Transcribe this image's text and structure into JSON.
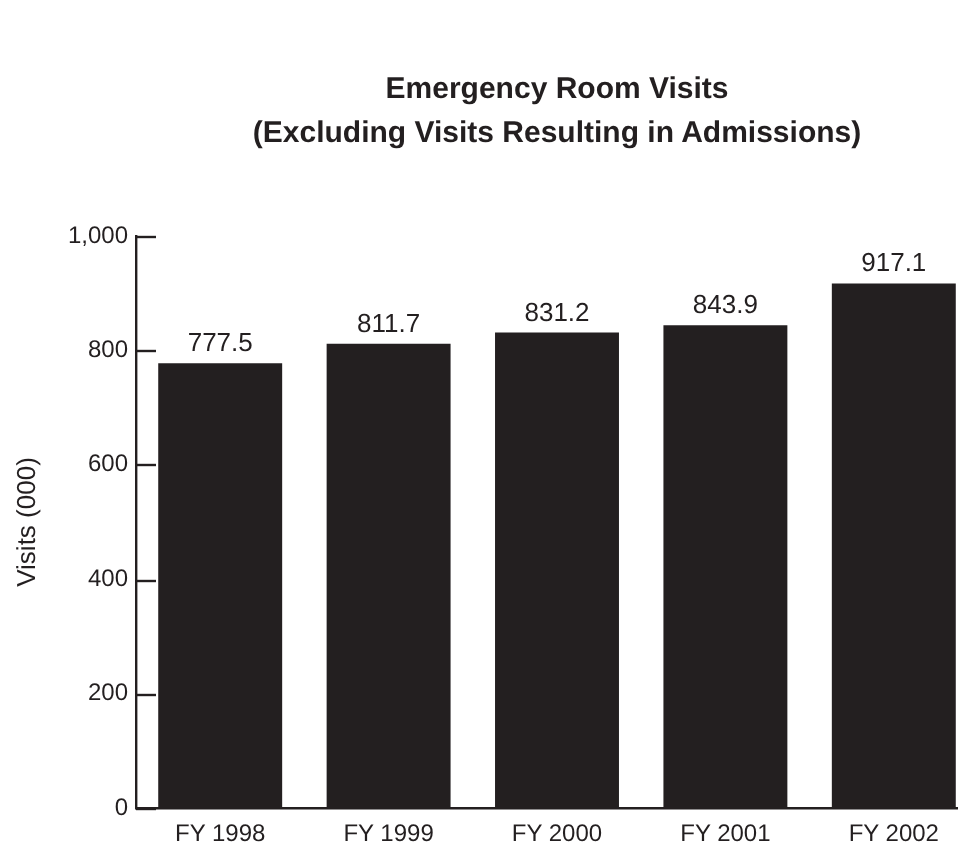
{
  "chart_data": {
    "type": "bar",
    "title": "Emergency Room Visits",
    "subtitle": "(Excluding Visits Resulting in Admissions)",
    "ylabel": "Visits (000)",
    "categories": [
      "FY 1998",
      "FY 1999",
      "FY 2000",
      "FY 2001",
      "FY 2002"
    ],
    "values": [
      777.5,
      811.7,
      831.2,
      843.9,
      917.1
    ],
    "color": "#231f20",
    "ylim": [
      0,
      1000
    ],
    "yticks": [
      0,
      200,
      400,
      600,
      800,
      {
        "value": 1000,
        "label": "1,000"
      }
    ],
    "grid": false,
    "legend": false,
    "data_labels": true
  }
}
